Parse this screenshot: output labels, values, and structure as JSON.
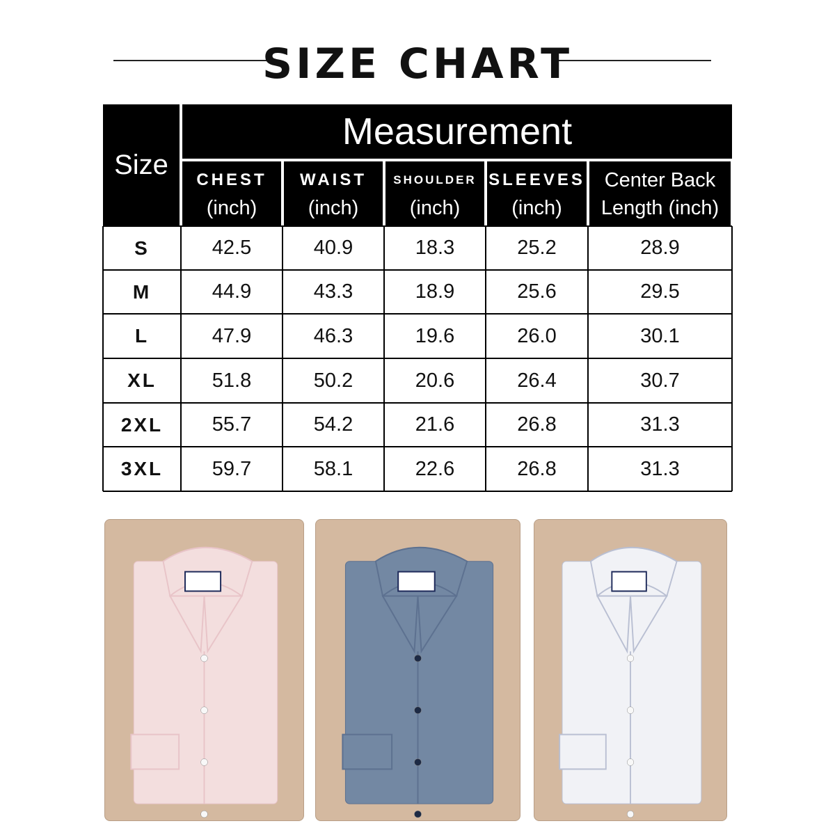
{
  "title": "SIZE CHART",
  "table": {
    "size_header": "Size",
    "group_header": "Measurement",
    "columns": [
      {
        "name": "CHEST",
        "unit": "(inch)"
      },
      {
        "name": "WAIST",
        "unit": "(inch)"
      },
      {
        "name": "SHOULDER",
        "unit": "(inch)"
      },
      {
        "name": "SLEEVES",
        "unit": "(inch)"
      },
      {
        "name": "Center Back",
        "unit": "Length (inch)"
      }
    ],
    "rows": [
      {
        "size": "S",
        "values": [
          "42.5",
          "40.9",
          "18.3",
          "25.2",
          "28.9"
        ]
      },
      {
        "size": "M",
        "values": [
          "44.9",
          "43.3",
          "18.9",
          "25.6",
          "29.5"
        ]
      },
      {
        "size": "L",
        "values": [
          "47.9",
          "46.3",
          "19.6",
          "26.0",
          "30.1"
        ]
      },
      {
        "size": "XL",
        "values": [
          "51.8",
          "50.2",
          "20.6",
          "26.4",
          "30.7"
        ]
      },
      {
        "size": "2XL",
        "values": [
          "55.7",
          "54.2",
          "21.6",
          "26.8",
          "31.3"
        ]
      },
      {
        "size": "3XL",
        "values": [
          "59.7",
          "58.1",
          "22.6",
          "26.8",
          "31.3"
        ]
      }
    ]
  },
  "shirts": [
    {
      "name": "pink-check-shirt",
      "color": "#f3dede",
      "accent": "#e8c4c8",
      "button": "#f8f8f8"
    },
    {
      "name": "blue-shirt",
      "color": "#7388a3",
      "accent": "#5d7190",
      "button": "#1d2a44"
    },
    {
      "name": "white-stripe-shirt",
      "color": "#f1f2f6",
      "accent": "#b9bfd2",
      "button": "#f8f8f8"
    }
  ],
  "colors": {
    "panel_bg": "#d4b9a0",
    "header_bg": "#000000"
  }
}
